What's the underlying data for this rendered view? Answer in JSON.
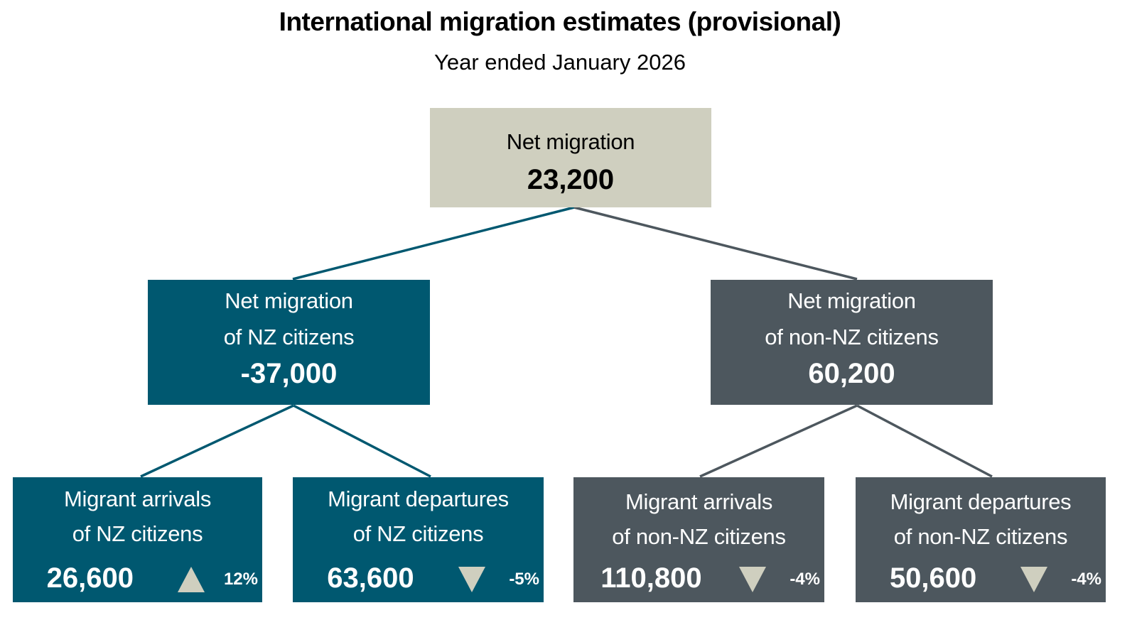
{
  "title": "International migration estimates (provisional)",
  "subtitle": "Year ended January 2026",
  "colors": {
    "nz": "#005870",
    "non_nz": "#4d575e",
    "total": "#cfcfbf"
  },
  "total": {
    "label": "Net migration",
    "value": "23,200"
  },
  "nz": {
    "label1": "Net migration",
    "label2": "of NZ citizens",
    "value": "-37,000",
    "arrivals": {
      "label1": "Migrant arrivals",
      "label2": "of NZ citizens",
      "value": "26,600",
      "change": "12%",
      "direction": "up"
    },
    "departures": {
      "label1": "Migrant departures",
      "label2": "of NZ citizens",
      "value": "63,600",
      "change": "-5%",
      "direction": "down"
    }
  },
  "non_nz": {
    "label1": "Net migration",
    "label2": "of non-NZ citizens",
    "value": "60,200",
    "arrivals": {
      "label1": "Migrant arrivals",
      "label2": "of non-NZ citizens",
      "value": "110,800",
      "change": "-4%",
      "direction": "down"
    },
    "departures": {
      "label1": "Migrant departures",
      "label2": "of non-NZ citizens",
      "value": "50,600",
      "change": "-4%",
      "direction": "down"
    }
  }
}
